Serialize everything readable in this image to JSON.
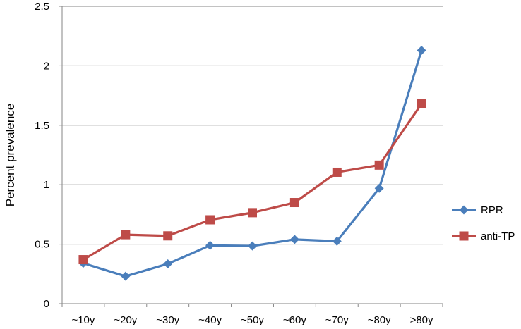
{
  "chart_data": {
    "type": "line",
    "categories": [
      "~10y",
      "~20y",
      "~30y",
      "~40y",
      "~50y",
      "~60y",
      "~70y",
      "~80y",
      ">80y"
    ],
    "series": [
      {
        "name": "RPR",
        "color": "#4a7ebb",
        "marker": "diamond",
        "values": [
          0.34,
          0.23,
          0.335,
          0.49,
          0.485,
          0.54,
          0.525,
          0.97,
          2.13
        ]
      },
      {
        "name": "anti-TP",
        "color": "#be4b48",
        "marker": "square",
        "values": [
          0.37,
          0.58,
          0.57,
          0.705,
          0.765,
          0.85,
          1.105,
          1.165,
          1.68
        ]
      }
    ],
    "ylabel": "Percent  prevalence",
    "xlabel": "",
    "ylim": [
      0,
      2.5
    ],
    "yticks": [
      0,
      0.5,
      1,
      1.5,
      2,
      2.5
    ],
    "ytick_labels": [
      "0",
      "0.5",
      "1",
      "1.5",
      "2",
      "2.5"
    ],
    "grid": "horizontal",
    "legend": "right"
  }
}
